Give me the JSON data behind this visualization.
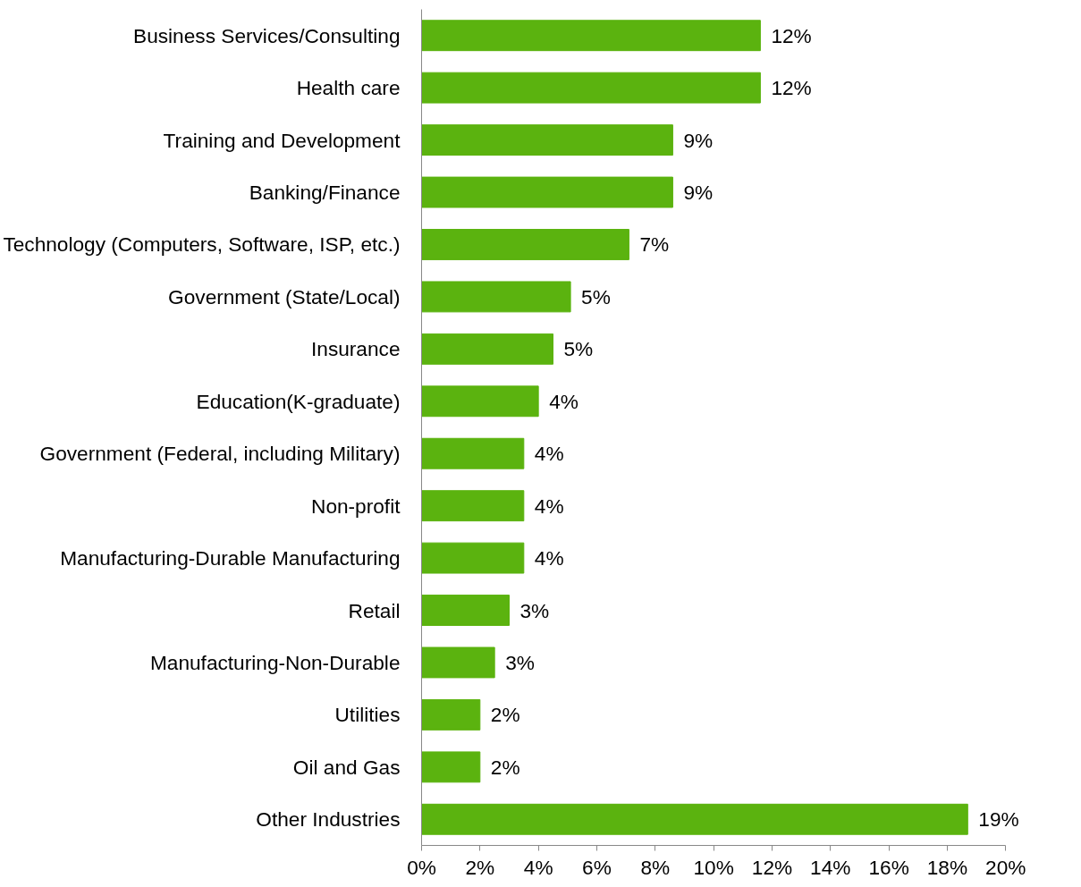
{
  "chart_data": {
    "type": "bar",
    "orientation": "horizontal",
    "categories": [
      "Business Services/Consulting",
      "Health care",
      "Training and Development",
      "Banking/Finance",
      "Technology (Computers, Software, ISP, etc.)",
      "Government (State/Local)",
      "Insurance",
      "Education(K-graduate)",
      "Government (Federal, including Military)",
      "Non-profit",
      "Manufacturing-Durable Manufacturing",
      "Retail",
      "Manufacturing-Non-Durable",
      "Utilities",
      "Oil and Gas",
      "Other Industries"
    ],
    "values": [
      11.6,
      11.6,
      8.6,
      8.6,
      7.1,
      5.1,
      4.5,
      4.0,
      3.5,
      3.5,
      3.5,
      3.0,
      2.5,
      2.0,
      2.0,
      18.7
    ],
    "value_labels": [
      "12%",
      "12%",
      "9%",
      "9%",
      "7%",
      "5%",
      "5%",
      "4%",
      "4%",
      "4%",
      "4%",
      "3%",
      "3%",
      "2%",
      "2%",
      "19%"
    ],
    "color": "#5bb30f",
    "xlim": [
      0,
      20
    ],
    "xticks": [
      {
        "value": 0,
        "label": "0%"
      },
      {
        "value": 2,
        "label": "2%"
      },
      {
        "value": 4,
        "label": "4%"
      },
      {
        "value": 6,
        "label": "6%"
      },
      {
        "value": 8,
        "label": "8%"
      },
      {
        "value": 10,
        "label": "10%"
      },
      {
        "value": 12,
        "label": "12%"
      },
      {
        "value": 14,
        "label": "14%"
      },
      {
        "value": 16,
        "label": "16%"
      },
      {
        "value": 18,
        "label": "18%"
      },
      {
        "value": 20,
        "label": "20%"
      }
    ],
    "grid": false
  }
}
